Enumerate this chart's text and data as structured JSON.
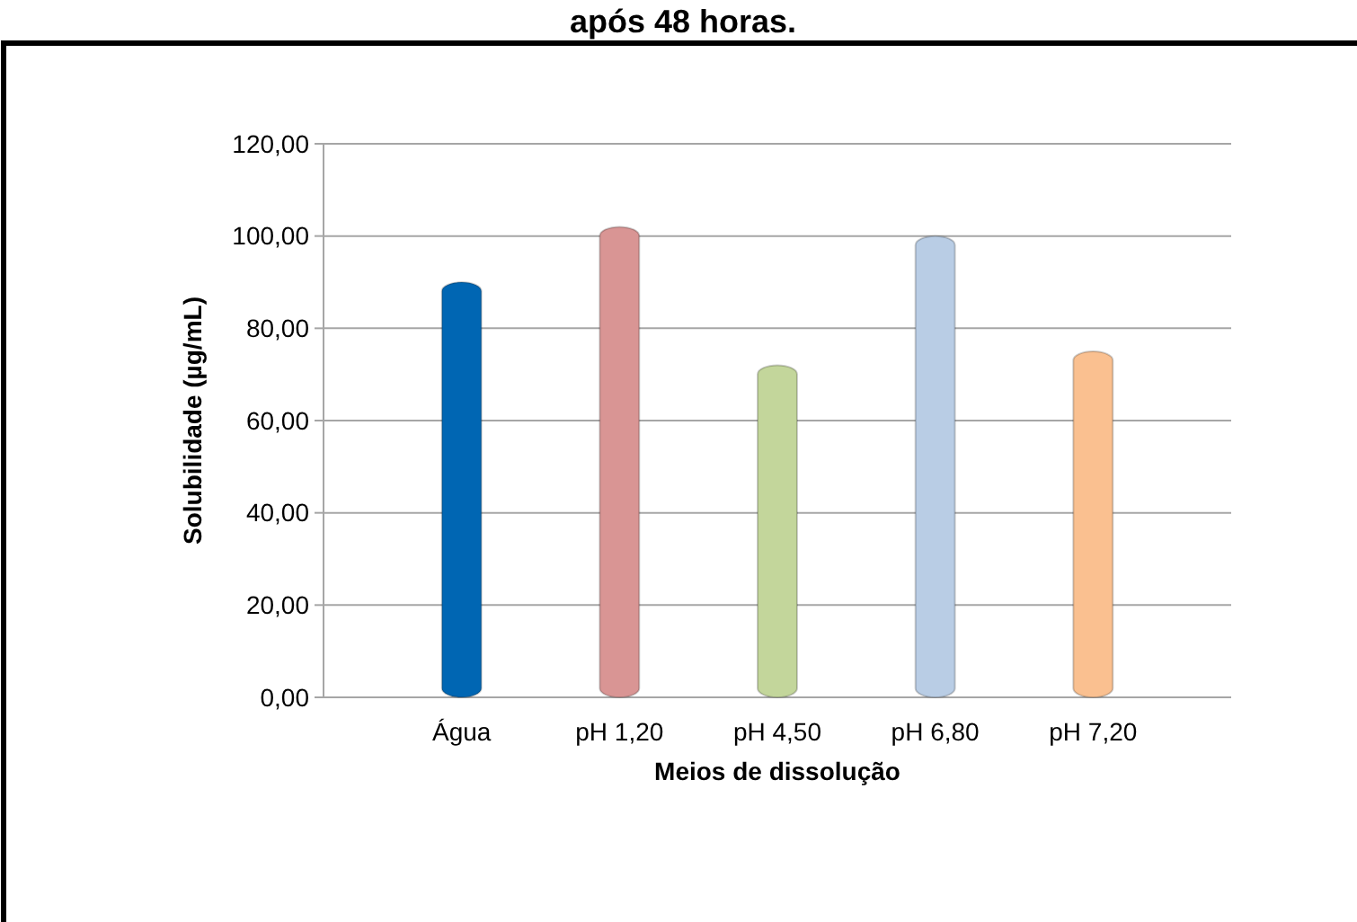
{
  "chart_data": {
    "type": "bar",
    "title": "após 48 horas.",
    "xlabel": "Meios de dissolução",
    "ylabel": "Solubilidade (µg/mL)",
    "categories": [
      "Água",
      "pH 1,20",
      "pH 4,50",
      "pH 6,80",
      "pH 7,20"
    ],
    "values": [
      90,
      102,
      72,
      100,
      75
    ],
    "colors": [
      "#0066b3",
      "#d99594",
      "#c3d69b",
      "#b9cde5",
      "#fac090"
    ],
    "ylim": [
      0,
      120
    ],
    "yticks": [
      {
        "value": 0,
        "label": "0,00"
      },
      {
        "value": 20,
        "label": "20,00"
      },
      {
        "value": 40,
        "label": "40,00"
      },
      {
        "value": 60,
        "label": "60,00"
      },
      {
        "value": 80,
        "label": "80,00"
      },
      {
        "value": 100,
        "label": "100,00"
      },
      {
        "value": 120,
        "label": "120,00"
      }
    ],
    "grid": true
  }
}
